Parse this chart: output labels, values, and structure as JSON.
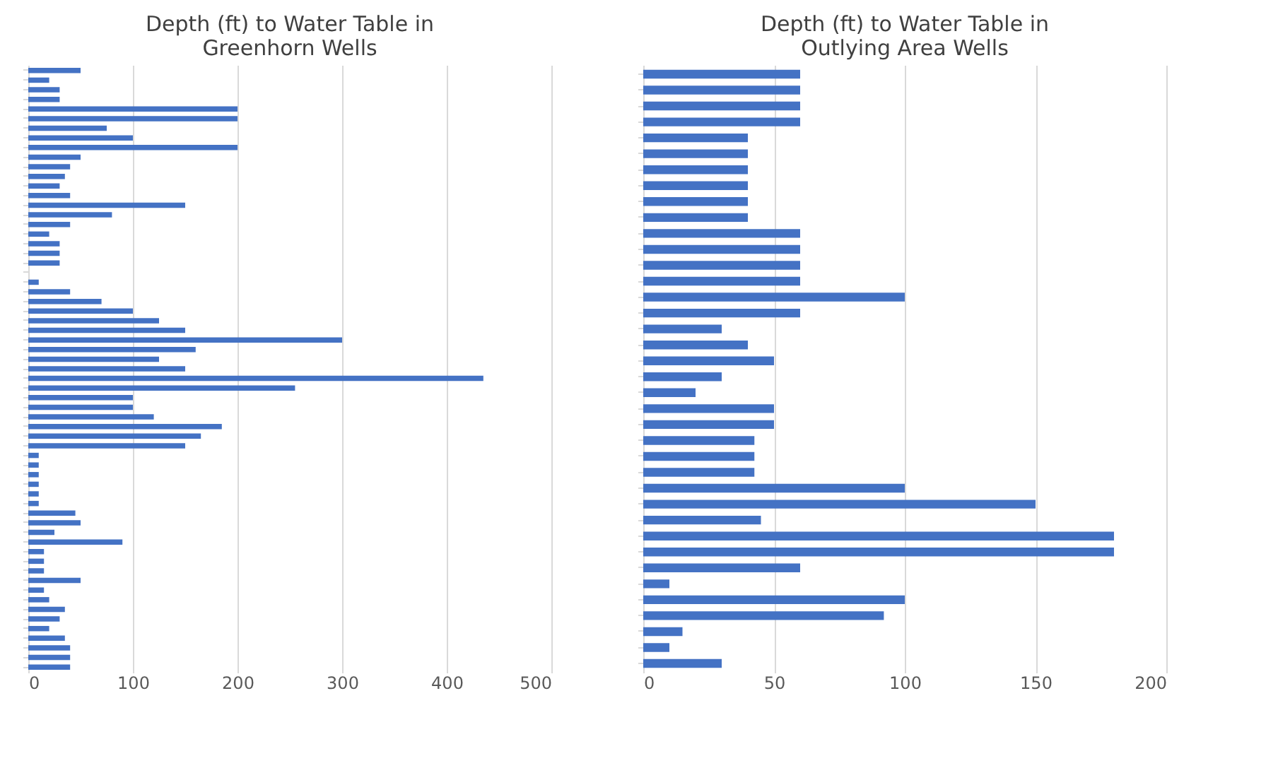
{
  "chart_data": [
    {
      "type": "bar",
      "orientation": "horizontal",
      "title": "Depth (ft) to Water Table in Greenhorn Wells",
      "color": "#4472c4",
      "grid": "x",
      "tick_labels": "x",
      "xlim": [
        0,
        500
      ],
      "xticks": [
        0,
        100,
        200,
        300,
        400,
        500
      ],
      "categories": [
        null,
        null,
        null,
        null,
        null,
        null,
        null,
        null,
        null,
        null,
        null,
        null,
        null,
        null,
        null,
        null,
        null,
        null,
        null,
        null,
        null,
        null,
        null,
        null,
        null,
        null,
        null,
        null,
        null,
        null,
        null,
        null,
        null,
        null,
        null,
        null,
        null,
        null,
        null,
        null,
        null,
        null,
        null,
        null,
        null,
        null,
        null,
        null,
        null,
        null,
        null,
        null,
        null,
        null,
        null,
        null,
        null,
        null,
        null,
        null,
        null,
        null,
        null
      ],
      "values": [
        50,
        20,
        30,
        30,
        200,
        200,
        75,
        100,
        200,
        50,
        40,
        35,
        30,
        40,
        150,
        80,
        40,
        20,
        30,
        30,
        30,
        null,
        10,
        40,
        70,
        100,
        125,
        150,
        300,
        160,
        125,
        150,
        435,
        255,
        100,
        100,
        120,
        185,
        165,
        150,
        10,
        10,
        10,
        10,
        10,
        10,
        45,
        50,
        25,
        90,
        15,
        15,
        15,
        50,
        15,
        20,
        35,
        30,
        20,
        35,
        40,
        40,
        40
      ]
    },
    {
      "type": "bar",
      "orientation": "horizontal",
      "title": "Depth (ft) to Water Table in Outlying Area Wells",
      "color": "#4472c4",
      "grid": "x",
      "tick_labels": "x",
      "xlim": [
        0,
        200
      ],
      "xticks": [
        0,
        50,
        100,
        150,
        200
      ],
      "categories": [
        null,
        null,
        null,
        null,
        null,
        null,
        null,
        null,
        null,
        null,
        null,
        null,
        null,
        null,
        null,
        null,
        null,
        null,
        null,
        null,
        null,
        null,
        null,
        null,
        null,
        null,
        null,
        null,
        null,
        null,
        null,
        null,
        null,
        null,
        null,
        null,
        null,
        null
      ],
      "values": [
        60,
        60,
        60,
        60,
        40,
        40,
        40,
        40,
        40,
        40,
        60,
        60,
        60,
        60,
        100,
        60,
        30,
        40,
        50,
        30,
        20,
        50,
        50,
        42.5,
        42.5,
        42.5,
        100,
        150,
        45,
        180,
        180,
        60,
        10,
        100,
        92,
        15,
        10,
        30
      ]
    }
  ]
}
